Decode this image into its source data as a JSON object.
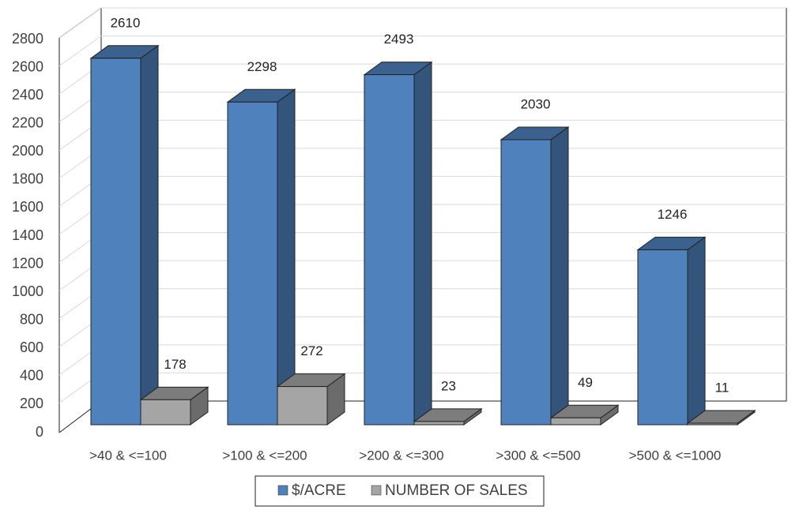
{
  "chart_data": {
    "type": "bar3d",
    "categories": [
      ">40 & <=100",
      ">100 & <=200",
      ">200 & <=300",
      ">300 & <=500",
      ">500 & <=1000"
    ],
    "series": [
      {
        "name": "$/ACRE",
        "color": "#4f81bd",
        "values": [
          2610,
          2298,
          2493,
          2030,
          1246
        ]
      },
      {
        "name": "NUMBER OF SALES",
        "color": "#a5a5a5",
        "values": [
          178,
          272,
          23,
          49,
          11
        ]
      }
    ],
    "ylim": [
      0,
      2800
    ],
    "yticks": [
      0,
      200,
      400,
      600,
      800,
      1000,
      1200,
      1400,
      1600,
      1800,
      2000,
      2200,
      2400,
      2600,
      2800
    ],
    "grid": true
  }
}
